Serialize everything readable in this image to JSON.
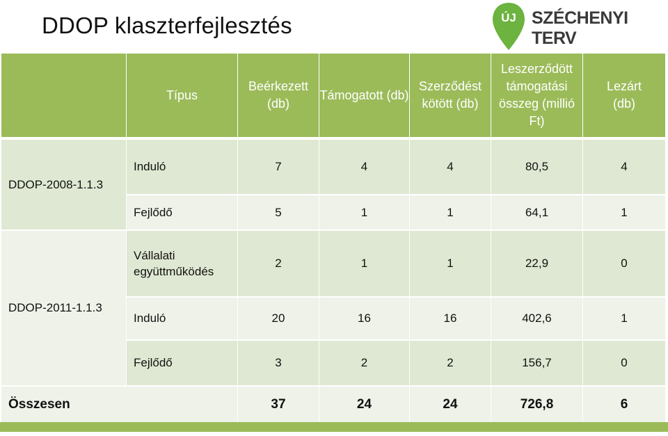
{
  "title": "DDOP klaszterfejlesztés",
  "logo": {
    "badge": "ÚJ",
    "text": "SZÉCHENYI TERV"
  },
  "table": {
    "headers": [
      "Típus",
      "Beérkezett (db)",
      "Támogatott (db)",
      "Szerződést kötött (db)",
      "Leszerződött támogatási összeg (millió Ft)",
      "Lezárt (db)"
    ],
    "groups": [
      "DDOP-2008-1.1.3",
      "DDOP-2011-1.1.3"
    ],
    "rows": [
      {
        "type": "Induló",
        "received": "7",
        "supported": "4",
        "contracted": "4",
        "amount": "80,5",
        "closed": "4"
      },
      {
        "type": "Fejlődő",
        "received": "5",
        "supported": "1",
        "contracted": "1",
        "amount": "64,1",
        "closed": "1"
      },
      {
        "type": "Vállalati együttműködés",
        "received": "2",
        "supported": "1",
        "contracted": "1",
        "amount": "22,9",
        "closed": "0"
      },
      {
        "type": "Induló",
        "received": "20",
        "supported": "16",
        "contracted": "16",
        "amount": "402,6",
        "closed": "1"
      },
      {
        "type": "Fejlődő",
        "received": "3",
        "supported": "2",
        "contracted": "2",
        "amount": "156,7",
        "closed": "0"
      }
    ],
    "total": {
      "label": "Összesen",
      "received": "37",
      "supported": "24",
      "contracted": "24",
      "amount": "726,8",
      "closed": "6"
    }
  },
  "colors": {
    "header": "#9bbb59",
    "row_light": "#dfe8d2",
    "row_lighter": "#eef2e8",
    "logo_green": "#6cb33f"
  }
}
